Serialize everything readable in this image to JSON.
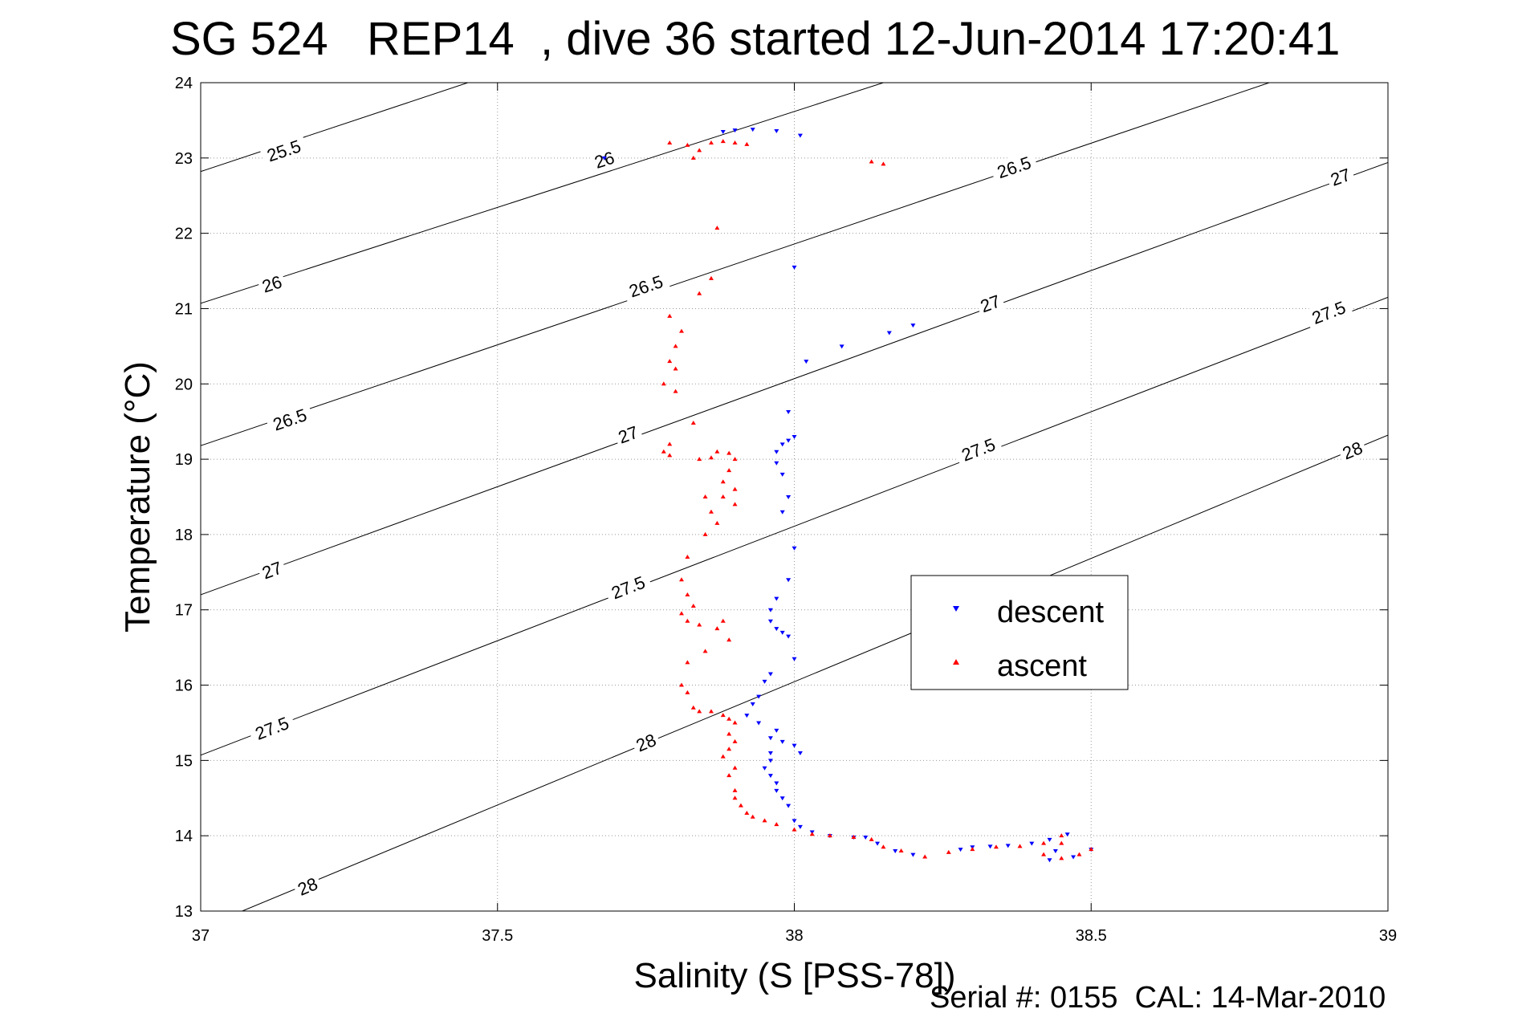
{
  "chart_data": {
    "type": "scatter",
    "title": "SG 524   REP14  , dive 36 started 12-Jun-2014 17:20:41",
    "xlabel": "Salinity (S [PSS-78])",
    "ylabel": "Temperature (°C)",
    "xlim": [
      37,
      39
    ],
    "ylim": [
      13,
      24
    ],
    "xticks": [
      37,
      37.5,
      38,
      38.5,
      39
    ],
    "xtick_labels": [
      "37",
      "37.5",
      "38",
      "38.5",
      "39"
    ],
    "yticks": [
      13,
      14,
      15,
      16,
      17,
      18,
      19,
      20,
      21,
      22,
      23,
      24
    ],
    "ytick_labels": [
      "13",
      "14",
      "15",
      "16",
      "17",
      "18",
      "19",
      "20",
      "21",
      "22",
      "23",
      "24"
    ],
    "grid": true,
    "legend_position": "middle-right",
    "footer": "Serial #: 0155  CAL: 14-Mar-2010",
    "density_contours": [
      {
        "line": [
          [
            37.0,
            22.82
          ],
          [
            37.45,
            24.0
          ]
        ],
        "labels": [
          {
            "text": "25.5",
            "x": 37.14,
            "y": 23.1
          }
        ]
      },
      {
        "line": [
          [
            37.0,
            21.07
          ],
          [
            38.15,
            24.0
          ]
        ],
        "labels": [
          {
            "text": "26",
            "x": 37.12,
            "y": 21.33
          },
          {
            "text": "26",
            "x": 37.68,
            "y": 22.98
          }
        ]
      },
      {
        "line": [
          [
            37.0,
            19.18
          ],
          [
            38.8,
            24.0
          ]
        ],
        "labels": [
          {
            "text": "26.5",
            "x": 37.15,
            "y": 19.53
          },
          {
            "text": "26.5",
            "x": 37.75,
            "y": 21.3
          },
          {
            "text": "26.5",
            "x": 38.37,
            "y": 22.88
          }
        ]
      },
      {
        "line": [
          [
            37.0,
            17.2
          ],
          [
            39.0,
            22.94
          ]
        ],
        "labels": [
          {
            "text": "27",
            "x": 37.12,
            "y": 17.53
          },
          {
            "text": "27",
            "x": 37.72,
            "y": 19.33
          },
          {
            "text": "27",
            "x": 38.33,
            "y": 21.07
          },
          {
            "text": "27",
            "x": 38.92,
            "y": 22.75
          }
        ]
      },
      {
        "line": [
          [
            37.0,
            15.07
          ],
          [
            39.0,
            21.15
          ]
        ],
        "labels": [
          {
            "text": "27.5",
            "x": 37.12,
            "y": 15.43
          },
          {
            "text": "27.5",
            "x": 37.72,
            "y": 17.3
          },
          {
            "text": "27.5",
            "x": 38.31,
            "y": 19.13
          },
          {
            "text": "27.5",
            "x": 38.9,
            "y": 20.95
          }
        ]
      },
      {
        "line": [
          [
            37.07,
            13.0
          ],
          [
            39.0,
            19.32
          ]
        ],
        "labels": [
          {
            "text": "28",
            "x": 37.18,
            "y": 13.33
          },
          {
            "text": "28",
            "x": 37.75,
            "y": 15.24
          },
          {
            "text": "28",
            "x": 38.94,
            "y": 19.12
          }
        ]
      }
    ],
    "series": [
      {
        "name": "descent",
        "marker": "triangle-down",
        "color": "#0000ff",
        "points": [
          [
            37.68,
            23.0
          ],
          [
            37.88,
            23.35
          ],
          [
            37.9,
            23.37
          ],
          [
            37.93,
            23.38
          ],
          [
            37.97,
            23.36
          ],
          [
            38.01,
            23.3
          ],
          [
            38.0,
            21.55
          ],
          [
            38.2,
            20.78
          ],
          [
            38.16,
            20.68
          ],
          [
            38.08,
            20.5
          ],
          [
            38.02,
            20.3
          ],
          [
            37.99,
            19.63
          ],
          [
            38.0,
            19.3
          ],
          [
            37.99,
            19.25
          ],
          [
            37.98,
            19.2
          ],
          [
            37.97,
            19.1
          ],
          [
            37.97,
            18.95
          ],
          [
            37.98,
            18.8
          ],
          [
            37.99,
            18.5
          ],
          [
            37.98,
            18.3
          ],
          [
            38.0,
            17.82
          ],
          [
            37.99,
            17.4
          ],
          [
            37.97,
            17.15
          ],
          [
            37.96,
            17.0
          ],
          [
            37.96,
            16.85
          ],
          [
            37.97,
            16.75
          ],
          [
            37.98,
            16.7
          ],
          [
            37.99,
            16.65
          ],
          [
            38.0,
            16.35
          ],
          [
            37.96,
            16.15
          ],
          [
            37.95,
            16.05
          ],
          [
            37.94,
            15.85
          ],
          [
            37.93,
            15.75
          ],
          [
            37.92,
            15.6
          ],
          [
            37.94,
            15.5
          ],
          [
            37.97,
            15.4
          ],
          [
            37.96,
            15.3
          ],
          [
            37.98,
            15.25
          ],
          [
            38.0,
            15.2
          ],
          [
            38.01,
            15.1
          ],
          [
            37.96,
            15.1
          ],
          [
            37.96,
            15.0
          ],
          [
            37.95,
            14.9
          ],
          [
            37.96,
            14.8
          ],
          [
            37.97,
            14.7
          ],
          [
            37.97,
            14.6
          ],
          [
            37.98,
            14.5
          ],
          [
            37.99,
            14.4
          ],
          [
            38.0,
            14.2
          ],
          [
            38.01,
            14.12
          ],
          [
            38.03,
            14.05
          ],
          [
            38.06,
            14.0
          ],
          [
            38.1,
            13.98
          ],
          [
            38.12,
            13.98
          ],
          [
            38.14,
            13.9
          ],
          [
            38.17,
            13.8
          ],
          [
            38.2,
            13.75
          ],
          [
            38.28,
            13.82
          ],
          [
            38.3,
            13.85
          ],
          [
            38.33,
            13.86
          ],
          [
            38.36,
            13.87
          ],
          [
            38.4,
            13.9
          ],
          [
            38.43,
            13.95
          ],
          [
            38.46,
            14.02
          ],
          [
            38.44,
            13.8
          ],
          [
            38.43,
            13.68
          ],
          [
            38.47,
            13.72
          ],
          [
            38.5,
            13.82
          ]
        ]
      },
      {
        "name": "ascent",
        "marker": "triangle-up",
        "color": "#ff0000",
        "points": [
          [
            37.79,
            23.2
          ],
          [
            37.82,
            23.17
          ],
          [
            37.84,
            23.1
          ],
          [
            37.83,
            23.0
          ],
          [
            37.86,
            23.2
          ],
          [
            37.88,
            23.22
          ],
          [
            37.9,
            23.2
          ],
          [
            37.92,
            23.18
          ],
          [
            38.13,
            22.95
          ],
          [
            38.15,
            22.92
          ],
          [
            37.87,
            22.07
          ],
          [
            37.86,
            21.4
          ],
          [
            37.84,
            21.2
          ],
          [
            37.79,
            20.9
          ],
          [
            37.81,
            20.7
          ],
          [
            37.8,
            20.5
          ],
          [
            37.79,
            20.3
          ],
          [
            37.8,
            20.2
          ],
          [
            37.78,
            20.0
          ],
          [
            37.8,
            19.9
          ],
          [
            37.83,
            19.48
          ],
          [
            37.79,
            19.2
          ],
          [
            37.78,
            19.1
          ],
          [
            37.79,
            19.05
          ],
          [
            37.84,
            19.0
          ],
          [
            37.86,
            19.02
          ],
          [
            37.87,
            19.1
          ],
          [
            37.89,
            19.08
          ],
          [
            37.9,
            19.0
          ],
          [
            37.89,
            18.85
          ],
          [
            37.88,
            18.7
          ],
          [
            37.9,
            18.6
          ],
          [
            37.88,
            18.5
          ],
          [
            37.9,
            18.4
          ],
          [
            37.85,
            18.5
          ],
          [
            37.86,
            18.3
          ],
          [
            37.87,
            18.15
          ],
          [
            37.85,
            18.0
          ],
          [
            37.82,
            17.7
          ],
          [
            37.81,
            17.4
          ],
          [
            37.82,
            17.2
          ],
          [
            37.83,
            17.05
          ],
          [
            37.81,
            16.95
          ],
          [
            37.82,
            16.85
          ],
          [
            37.84,
            16.8
          ],
          [
            37.87,
            16.75
          ],
          [
            37.88,
            16.85
          ],
          [
            37.89,
            16.6
          ],
          [
            37.85,
            16.45
          ],
          [
            37.82,
            16.3
          ],
          [
            37.81,
            16.0
          ],
          [
            37.82,
            15.9
          ],
          [
            37.83,
            15.7
          ],
          [
            37.84,
            15.65
          ],
          [
            37.86,
            15.65
          ],
          [
            37.88,
            15.6
          ],
          [
            37.89,
            15.55
          ],
          [
            37.9,
            15.5
          ],
          [
            37.89,
            15.35
          ],
          [
            37.9,
            15.25
          ],
          [
            37.89,
            15.15
          ],
          [
            37.88,
            15.05
          ],
          [
            37.9,
            14.9
          ],
          [
            37.89,
            14.8
          ],
          [
            37.9,
            14.6
          ],
          [
            37.9,
            14.5
          ],
          [
            37.91,
            14.4
          ],
          [
            37.92,
            14.3
          ],
          [
            37.93,
            14.25
          ],
          [
            37.95,
            14.2
          ],
          [
            37.97,
            14.15
          ],
          [
            38.0,
            14.08
          ],
          [
            38.03,
            14.02
          ],
          [
            38.06,
            14.0
          ],
          [
            38.1,
            13.98
          ],
          [
            38.13,
            13.95
          ],
          [
            38.15,
            13.85
          ],
          [
            38.18,
            13.8
          ],
          [
            38.22,
            13.72
          ],
          [
            38.26,
            13.78
          ],
          [
            38.3,
            13.82
          ],
          [
            38.34,
            13.85
          ],
          [
            38.38,
            13.86
          ],
          [
            38.42,
            13.9
          ],
          [
            38.45,
            13.9
          ],
          [
            38.45,
            14.0
          ],
          [
            38.42,
            13.75
          ],
          [
            38.45,
            13.7
          ],
          [
            38.48,
            13.75
          ],
          [
            38.5,
            13.82
          ]
        ]
      }
    ]
  }
}
